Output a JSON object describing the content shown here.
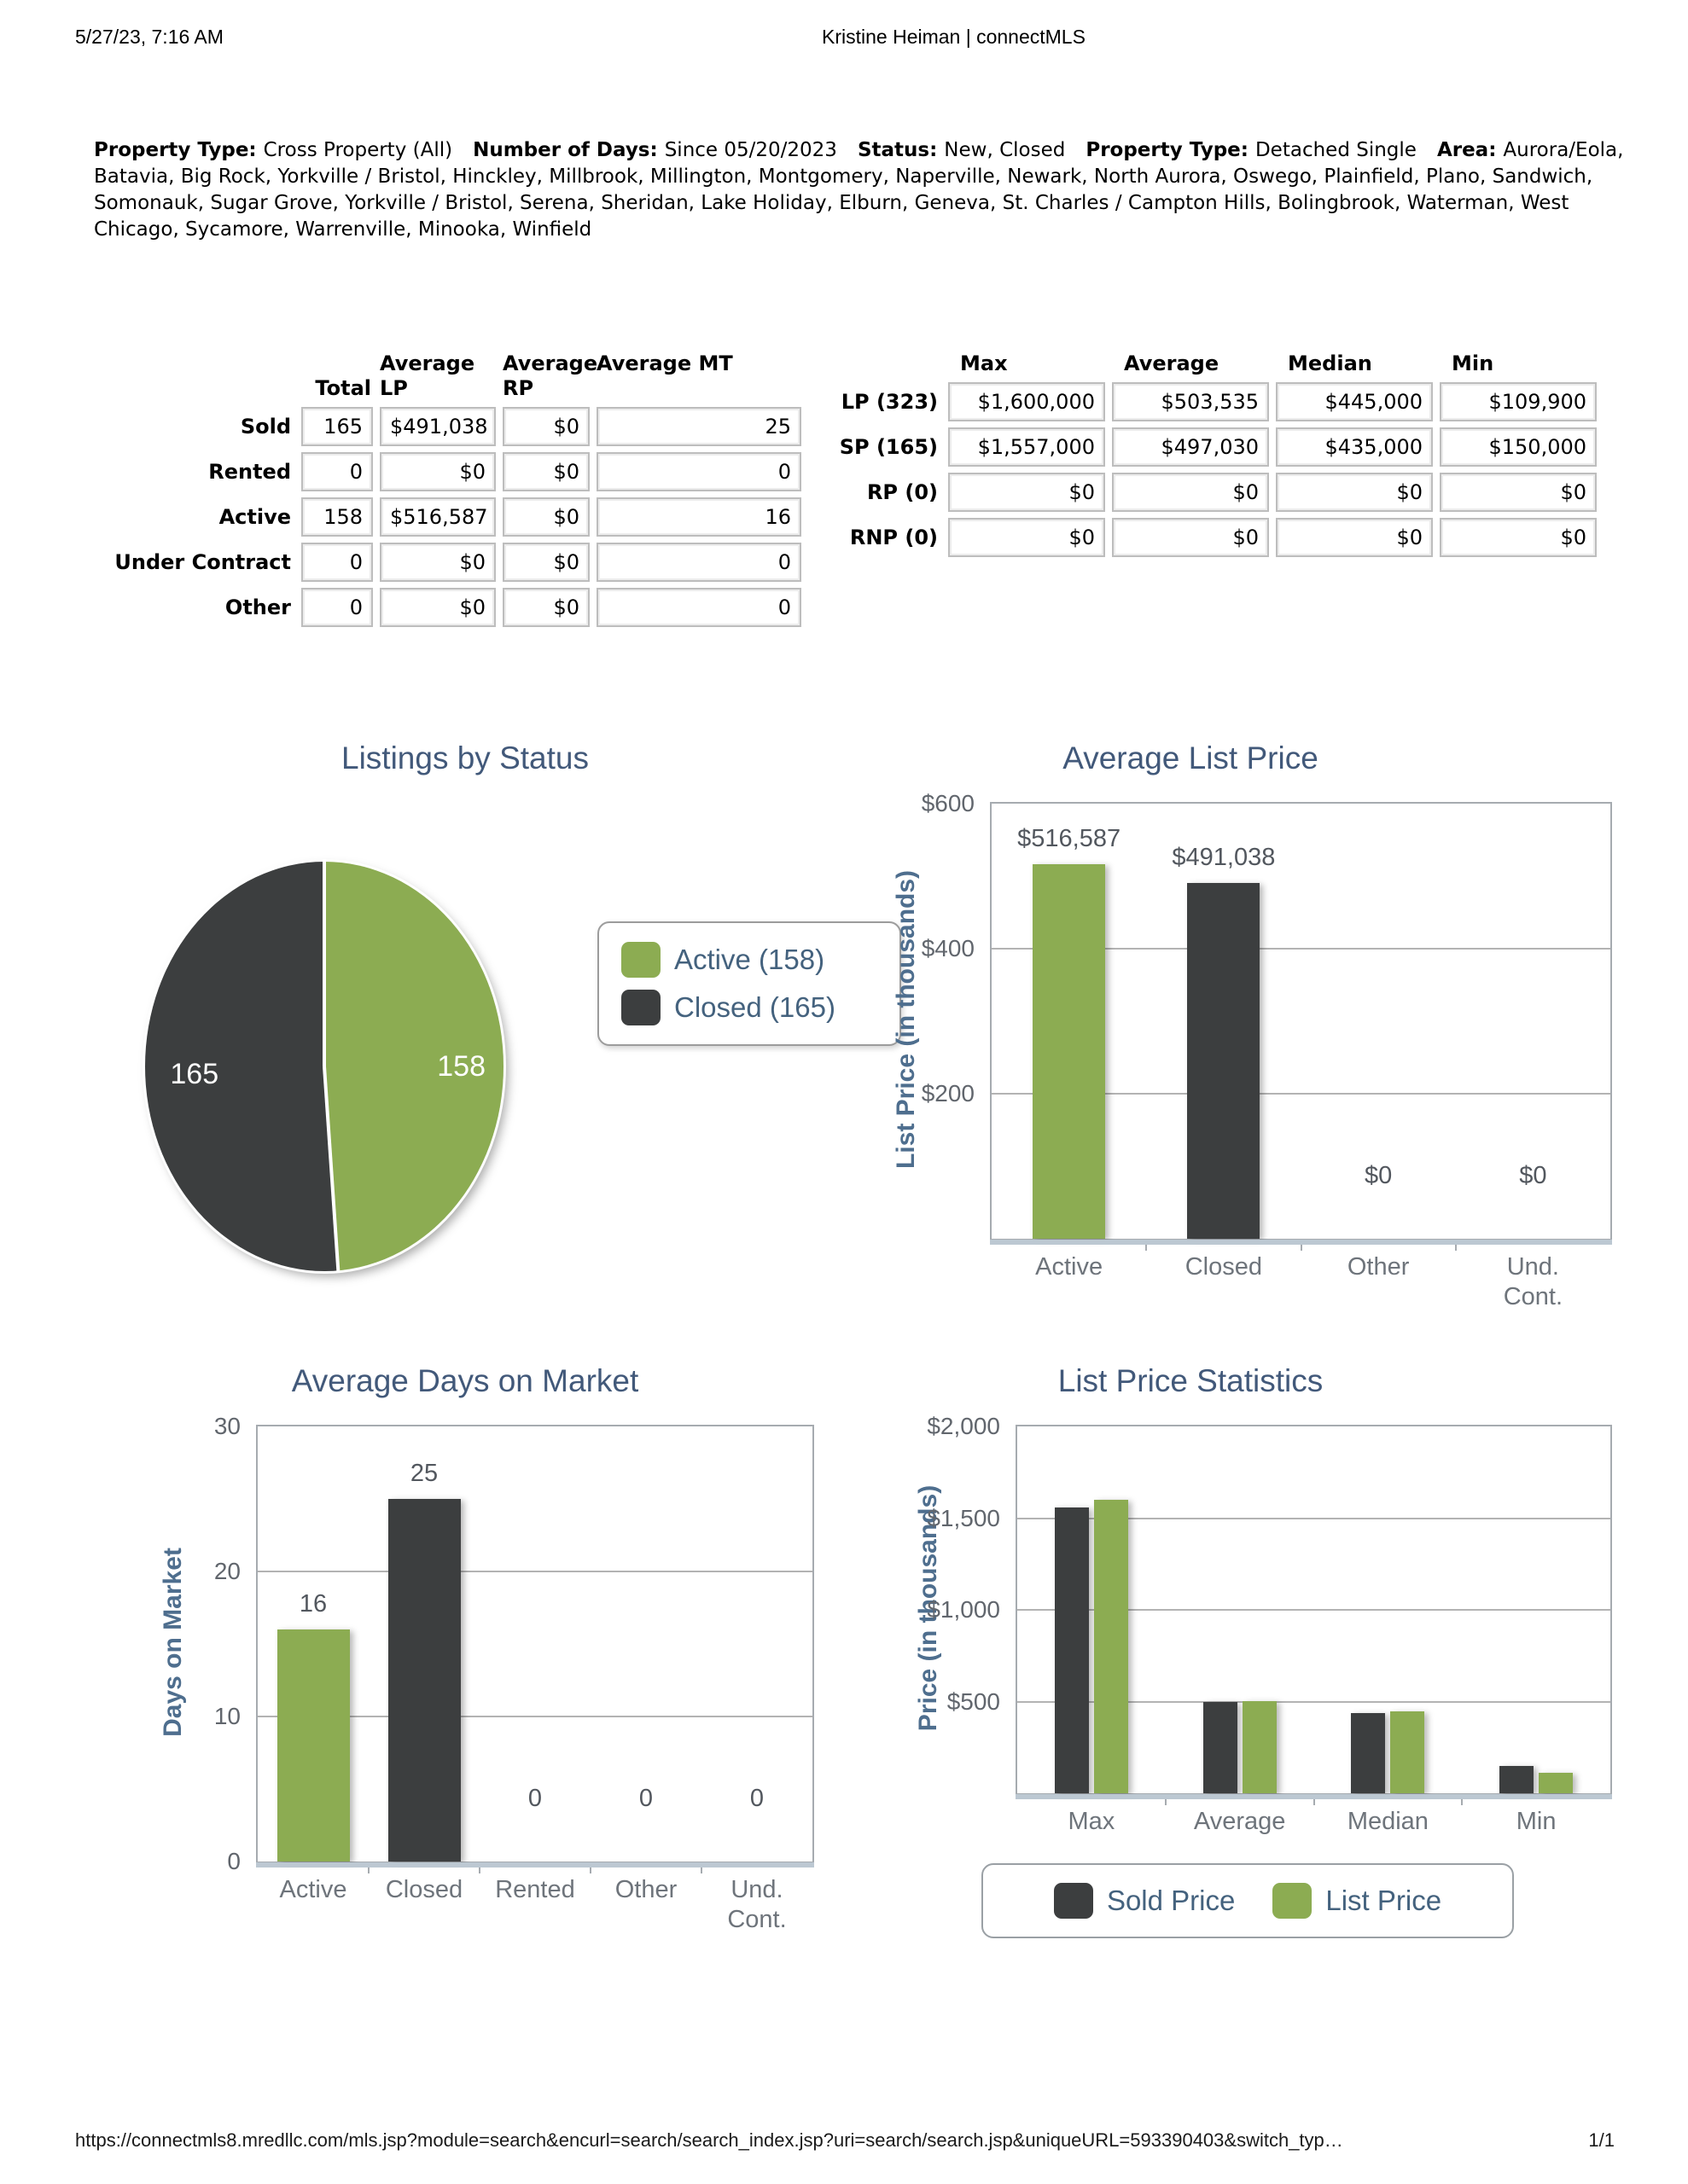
{
  "page": {
    "header": {
      "datetime": "5/27/23, 7:16 AM",
      "title": "Kristine Heiman | connectMLS"
    },
    "footer": {
      "url": "https://connectmls8.mredllc.com/mls.jsp?module=search&encurl=search/search_index.jsp?uri=search/search.jsp&uniqueURL=593390403&switch_typ…",
      "page": "1/1"
    }
  },
  "criteria": {
    "segments": [
      {
        "label": "Property Type:",
        "value": "Cross Property (All)"
      },
      {
        "label": "Number of Days:",
        "value": "Since 05/20/2023"
      },
      {
        "label": "Status:",
        "value": "New, Closed"
      },
      {
        "label": "Property Type:",
        "value": "Detached Single"
      },
      {
        "label": "Area:",
        "value": "Aurora/Eola, Batavia, Big Rock, Yorkville / Bristol, Hinckley, Millbrook, Millington, Montgomery, Naperville, Newark, North Aurora, Oswego, Plainfield, Plano, Sandwich, Somonauk, Sugar Grove, Yorkville / Bristol, Serena, Sheridan, Lake Holiday, Elburn, Geneva, St. Charles / Campton Hills, Bolingbrook, Waterman, West Chicago, Sycamore, Warrenville, Minooka, Winfield"
      }
    ]
  },
  "status_table": {
    "headers": [
      "Total",
      "Average LP",
      "Average RP",
      "Average MT"
    ],
    "rows": [
      {
        "label": "Sold",
        "values": [
          "165",
          "$491,038",
          "$0",
          "25"
        ]
      },
      {
        "label": "Rented",
        "values": [
          "0",
          "$0",
          "$0",
          "0"
        ]
      },
      {
        "label": "Active",
        "values": [
          "158",
          "$516,587",
          "$0",
          "16"
        ]
      },
      {
        "label": "Under Contract",
        "values": [
          "0",
          "$0",
          "$0",
          "0"
        ]
      },
      {
        "label": "Other",
        "values": [
          "0",
          "$0",
          "$0",
          "0"
        ]
      }
    ]
  },
  "price_table": {
    "headers": [
      "Max",
      "Average",
      "Median",
      "Min"
    ],
    "rows": [
      {
        "label": "LP (323)",
        "values": [
          "$1,600,000",
          "$503,535",
          "$445,000",
          "$109,900"
        ]
      },
      {
        "label": "SP (165)",
        "values": [
          "$1,557,000",
          "$497,030",
          "$435,000",
          "$150,000"
        ]
      },
      {
        "label": "RP (0)",
        "values": [
          "$0",
          "$0",
          "$0",
          "$0"
        ]
      },
      {
        "label": "RNP (0)",
        "values": [
          "$0",
          "$0",
          "$0",
          "$0"
        ]
      }
    ]
  },
  "colors": {
    "green": "#8cac52",
    "dark_gray": "#3c3e3f",
    "title_blue": "#42597a",
    "axis_label_blue": "#4e6e8e",
    "tick_gray": "#61666d",
    "category_gray": "#6e747b",
    "gridline_gray": "#b3b3b3",
    "axis_band": "#bcc8d2",
    "table_border": "#bdbdbd"
  },
  "chart_data": [
    {
      "type": "pie",
      "title": "Listings by Status",
      "slices": [
        {
          "name": "Active",
          "value": 158,
          "display": "158",
          "color": "#8cac52"
        },
        {
          "name": "Closed",
          "value": 165,
          "display": "165",
          "color": "#3c3e3f"
        }
      ],
      "legend": [
        {
          "label": "Active (158)",
          "color": "#8cac52"
        },
        {
          "label": "Closed (165)",
          "color": "#3c3e3f"
        }
      ],
      "legend_position": "right"
    },
    {
      "type": "bar",
      "title": "Average List Price",
      "ylabel": "List Price (in thousands)",
      "ymax": 600000,
      "yticks": [
        {
          "value": 600000,
          "label": "$600"
        },
        {
          "value": 400000,
          "label": "$400"
        },
        {
          "value": 200000,
          "label": "$200"
        }
      ],
      "categories": [
        "Active",
        "Closed",
        "Other",
        "Und.\nCont."
      ],
      "values": [
        516587,
        491038,
        0,
        0
      ],
      "value_labels": [
        "$516,587",
        "$491,038",
        "$0",
        "$0"
      ],
      "bar_colors": [
        "#8cac52",
        "#3c3e3f",
        "#8cac52",
        "#3c3e3f"
      ],
      "grid": true,
      "legend_position": "none"
    },
    {
      "type": "bar",
      "title": "Average Days on Market",
      "ylabel": "Days on Market",
      "ymax": 30,
      "yticks": [
        {
          "value": 30,
          "label": "30"
        },
        {
          "value": 20,
          "label": "20"
        },
        {
          "value": 10,
          "label": "10"
        },
        {
          "value": 0,
          "label": "0"
        }
      ],
      "categories": [
        "Active",
        "Closed",
        "Rented",
        "Other",
        "Und.\nCont."
      ],
      "values": [
        16,
        25,
        0,
        0,
        0
      ],
      "value_labels": [
        "16",
        "25",
        "0",
        "0",
        "0"
      ],
      "bar_colors": [
        "#8cac52",
        "#3c3e3f",
        "#8cac52",
        "#3c3e3f",
        "#8cac52"
      ],
      "grid": true,
      "legend_position": "none"
    },
    {
      "type": "grouped_bar",
      "title": "List Price Statistics",
      "ylabel": "Price (in thousands)",
      "ymax": 2000000,
      "yticks": [
        {
          "value": 2000000,
          "label": "$2,000"
        },
        {
          "value": 1500000,
          "label": "$1,500"
        },
        {
          "value": 1000000,
          "label": "$1,000"
        },
        {
          "value": 500000,
          "label": "$500"
        }
      ],
      "categories": [
        "Max",
        "Average",
        "Median",
        "Min"
      ],
      "series": [
        {
          "name": "Sold Price",
          "color": "#3c3e3f",
          "values": [
            1557000,
            497030,
            435000,
            150000
          ]
        },
        {
          "name": "List Price",
          "color": "#8cac52",
          "values": [
            1600000,
            503535,
            445000,
            109900
          ]
        }
      ],
      "legend": [
        {
          "label": "Sold Price",
          "color": "#3c3e3f"
        },
        {
          "label": "List Price",
          "color": "#8cac52"
        }
      ],
      "legend_position": "bottom",
      "grid": true
    }
  ]
}
